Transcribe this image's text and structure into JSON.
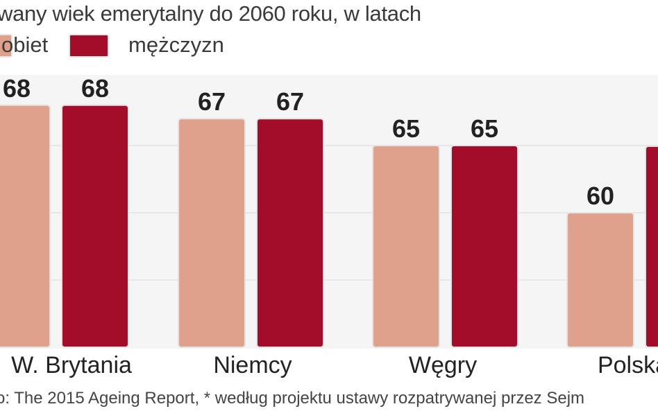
{
  "header": {
    "title": "wany wiek emerytalny do 2060 roku, w latach",
    "legend": {
      "female_label": "obiet",
      "male_label": "mężczyzn"
    }
  },
  "colors": {
    "female": "#dfa08c",
    "male": "#a30d2a",
    "plot_bg": "#f5f5f5",
    "grid": "#e2e2e2"
  },
  "source": "o: The 2015 Ageing Report, * według projektu ustawy rozpatrywanej przez Sejm",
  "chart_data": {
    "type": "bar",
    "title": "wany wiek emerytalny do 2060 roku, w latach",
    "xlabel": "",
    "ylabel": "",
    "categories": [
      "W. Brytania",
      "Niemcy",
      "Węgry",
      "Polska"
    ],
    "series": [
      {
        "name": "obiet",
        "values": [
          68,
          67,
          65,
          60
        ]
      },
      {
        "name": "mężczyzn",
        "values": [
          68,
          67,
          65,
          null
        ]
      }
    ],
    "ylim": [
      50,
      70
    ],
    "grid": true,
    "legend": "top-left"
  }
}
